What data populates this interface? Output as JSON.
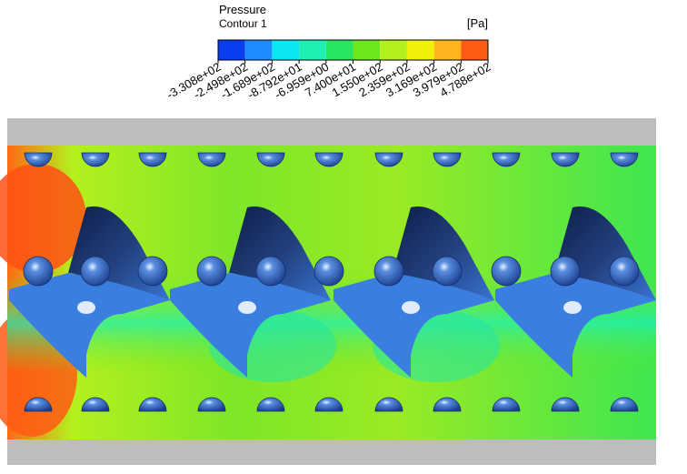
{
  "legend": {
    "title": "Pressure",
    "subtitle": "Contour 1",
    "unit": "[Pa]",
    "colors": [
      "#0a3cf0",
      "#1e8cff",
      "#0ae6f0",
      "#1ef0b4",
      "#28e664",
      "#6ee61e",
      "#b4f01e",
      "#f0f00a",
      "#ffb41e",
      "#ff5a14"
    ],
    "ticks": [
      {
        "value": -330.8,
        "label": "-3.308e+02"
      },
      {
        "value": -249.8,
        "label": "-2.498e+02"
      },
      {
        "value": -168.9,
        "label": "-1.689e+02"
      },
      {
        "value": -87.92,
        "label": "-8.792e+01"
      },
      {
        "value": -6.959,
        "label": "-6.959e+00"
      },
      {
        "value": 74.0,
        "label": "7.400e+01"
      },
      {
        "value": 155.0,
        "label": "1.550e+02"
      },
      {
        "value": 235.9,
        "label": "2.359e+02"
      },
      {
        "value": 316.9,
        "label": "3.169e+02"
      },
      {
        "value": 397.9,
        "label": "3.979e+02"
      },
      {
        "value": 478.8,
        "label": "4.788e+02"
      }
    ]
  }
}
